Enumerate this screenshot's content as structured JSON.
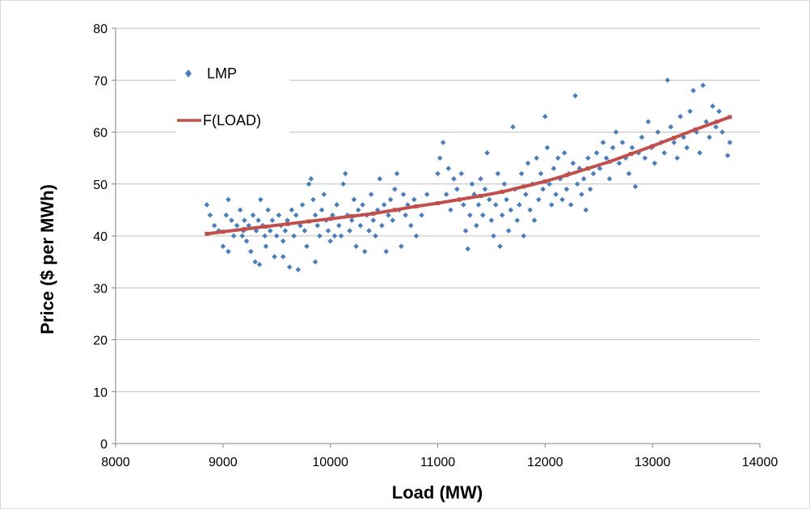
{
  "chart_data": {
    "type": "scatter",
    "title": "",
    "xlabel": "Load (MW)",
    "ylabel": "Price ($ per MWh)",
    "xlim": [
      8000,
      14000
    ],
    "ylim": [
      0,
      80
    ],
    "xticks": [
      8000,
      9000,
      10000,
      11000,
      12000,
      13000,
      14000
    ],
    "yticks": [
      0,
      10,
      20,
      30,
      40,
      50,
      60,
      70,
      80
    ],
    "grid": "horizontal",
    "legend_position": "top-left",
    "series": [
      {
        "name": "LMP",
        "kind": "scatter",
        "marker": "diamond",
        "color": "#4a7ebb",
        "points": [
          [
            8850,
            46
          ],
          [
            8880,
            44
          ],
          [
            8920,
            42
          ],
          [
            8960,
            41
          ],
          [
            9000,
            38
          ],
          [
            9030,
            44
          ],
          [
            9050,
            47
          ],
          [
            9080,
            43
          ],
          [
            9100,
            40
          ],
          [
            9130,
            42
          ],
          [
            9160,
            45
          ],
          [
            9190,
            41
          ],
          [
            9200,
            43
          ],
          [
            9220,
            39
          ],
          [
            9240,
            42
          ],
          [
            9260,
            37
          ],
          [
            9280,
            44
          ],
          [
            9300,
            35
          ],
          [
            9310,
            41
          ],
          [
            9330,
            43
          ],
          [
            9350,
            47
          ],
          [
            9370,
            42
          ],
          [
            9390,
            40
          ],
          [
            9400,
            38
          ],
          [
            9420,
            45
          ],
          [
            9440,
            41
          ],
          [
            9460,
            43
          ],
          [
            9480,
            36
          ],
          [
            9500,
            40
          ],
          [
            9520,
            44
          ],
          [
            9540,
            42
          ],
          [
            9560,
            39
          ],
          [
            9580,
            41
          ],
          [
            9600,
            43
          ],
          [
            9620,
            34
          ],
          [
            9640,
            45
          ],
          [
            9660,
            40
          ],
          [
            9680,
            44
          ],
          [
            9700,
            33.5
          ],
          [
            9720,
            42
          ],
          [
            9740,
            46
          ],
          [
            9760,
            41
          ],
          [
            9780,
            38
          ],
          [
            9800,
            50
          ],
          [
            9820,
            51
          ],
          [
            9840,
            47
          ],
          [
            9860,
            44
          ],
          [
            9880,
            42
          ],
          [
            9900,
            40
          ],
          [
            9920,
            45
          ],
          [
            9940,
            48
          ],
          [
            9960,
            43
          ],
          [
            9980,
            41
          ],
          [
            10000,
            39
          ],
          [
            10020,
            44
          ],
          [
            10040,
            40
          ],
          [
            10060,
            46
          ],
          [
            10080,
            42
          ],
          [
            10100,
            40
          ],
          [
            10120,
            50
          ],
          [
            10140,
            52
          ],
          [
            10160,
            44
          ],
          [
            10180,
            41
          ],
          [
            10200,
            43
          ],
          [
            10220,
            47
          ],
          [
            10240,
            38
          ],
          [
            10260,
            45
          ],
          [
            10280,
            42
          ],
          [
            10300,
            46
          ],
          [
            10320,
            37
          ],
          [
            10340,
            44
          ],
          [
            10360,
            41
          ],
          [
            10380,
            48
          ],
          [
            10400,
            43
          ],
          [
            10420,
            40
          ],
          [
            10440,
            45
          ],
          [
            10460,
            51
          ],
          [
            10480,
            42
          ],
          [
            10500,
            46
          ],
          [
            10520,
            37
          ],
          [
            10540,
            44
          ],
          [
            10560,
            47
          ],
          [
            10580,
            43
          ],
          [
            10600,
            49
          ],
          [
            10620,
            52
          ],
          [
            10640,
            45
          ],
          [
            10660,
            38
          ],
          [
            10680,
            48
          ],
          [
            10700,
            44
          ],
          [
            10720,
            46
          ],
          [
            10750,
            42
          ],
          [
            10780,
            47
          ],
          [
            10800,
            40
          ],
          [
            10850,
            44
          ],
          [
            10900,
            48
          ],
          [
            9050,
            37
          ],
          [
            9180,
            40
          ],
          [
            9340,
            34.5
          ],
          [
            9560,
            36
          ],
          [
            9860,
            35
          ],
          [
            11000,
            52
          ],
          [
            11020,
            55
          ],
          [
            11050,
            58
          ],
          [
            11080,
            48
          ],
          [
            11100,
            53
          ],
          [
            11120,
            45
          ],
          [
            11150,
            51
          ],
          [
            11180,
            49
          ],
          [
            11200,
            47
          ],
          [
            11220,
            52
          ],
          [
            11240,
            46
          ],
          [
            11260,
            41
          ],
          [
            11280,
            37.5
          ],
          [
            11300,
            44
          ],
          [
            11320,
            50
          ],
          [
            11340,
            48
          ],
          [
            11360,
            42
          ],
          [
            11380,
            46
          ],
          [
            11400,
            51
          ],
          [
            11420,
            44
          ],
          [
            11440,
            49
          ],
          [
            11460,
            56
          ],
          [
            11480,
            47
          ],
          [
            11500,
            43
          ],
          [
            11520,
            40
          ],
          [
            11540,
            46
          ],
          [
            11560,
            52
          ],
          [
            11580,
            38
          ],
          [
            11600,
            44
          ],
          [
            11620,
            50
          ],
          [
            11640,
            47
          ],
          [
            11660,
            41
          ],
          [
            11680,
            45
          ],
          [
            11700,
            61
          ],
          [
            11720,
            49
          ],
          [
            11740,
            43
          ],
          [
            11760,
            46
          ],
          [
            11780,
            52
          ],
          [
            11800,
            40
          ],
          [
            11820,
            48
          ],
          [
            11840,
            54
          ],
          [
            11860,
            45
          ],
          [
            11880,
            50
          ],
          [
            11900,
            43
          ],
          [
            11920,
            55
          ],
          [
            11940,
            47
          ],
          [
            11960,
            52
          ],
          [
            11980,
            49
          ],
          [
            12000,
            63
          ],
          [
            12020,
            57
          ],
          [
            12040,
            50
          ],
          [
            12060,
            46
          ],
          [
            12080,
            53
          ],
          [
            12100,
            48
          ],
          [
            12120,
            55
          ],
          [
            12140,
            51
          ],
          [
            12160,
            47
          ],
          [
            12180,
            56
          ],
          [
            12200,
            49
          ],
          [
            12220,
            52
          ],
          [
            12240,
            46
          ],
          [
            12260,
            54
          ],
          [
            12280,
            67
          ],
          [
            12300,
            50
          ],
          [
            12320,
            53
          ],
          [
            12340,
            48
          ],
          [
            12360,
            51
          ],
          [
            12380,
            45
          ],
          [
            12400,
            55
          ],
          [
            12420,
            49
          ],
          [
            12450,
            52
          ],
          [
            12480,
            56
          ],
          [
            12510,
            53
          ],
          [
            12540,
            58
          ],
          [
            12570,
            55
          ],
          [
            12600,
            51
          ],
          [
            12630,
            57
          ],
          [
            12660,
            60
          ],
          [
            12690,
            54
          ],
          [
            12720,
            58
          ],
          [
            12750,
            55
          ],
          [
            12780,
            52
          ],
          [
            12810,
            57
          ],
          [
            12840,
            49.5
          ],
          [
            12870,
            56
          ],
          [
            12900,
            59
          ],
          [
            12930,
            55
          ],
          [
            12960,
            62
          ],
          [
            12990,
            57
          ],
          [
            13020,
            54
          ],
          [
            13050,
            60
          ],
          [
            13080,
            58
          ],
          [
            13110,
            56
          ],
          [
            13140,
            70
          ],
          [
            13170,
            61
          ],
          [
            13200,
            58
          ],
          [
            13230,
            55
          ],
          [
            13260,
            63
          ],
          [
            13290,
            59
          ],
          [
            13320,
            57
          ],
          [
            13350,
            64
          ],
          [
            13380,
            68
          ],
          [
            13410,
            60
          ],
          [
            13440,
            56
          ],
          [
            13470,
            69
          ],
          [
            13500,
            62
          ],
          [
            13530,
            59
          ],
          [
            13560,
            65
          ],
          [
            13590,
            61
          ],
          [
            13620,
            64
          ],
          [
            13650,
            60
          ],
          [
            13700,
            55.5
          ],
          [
            13720,
            58
          ]
        ]
      },
      {
        "name": "F(LOAD)",
        "kind": "line",
        "color": "#c0504d",
        "points": [
          [
            8850,
            40.4
          ],
          [
            9000,
            40.8
          ],
          [
            9200,
            41.3
          ],
          [
            9400,
            41.8
          ],
          [
            9600,
            42.3
          ],
          [
            9800,
            42.8
          ],
          [
            10000,
            43.3
          ],
          [
            10200,
            43.8
          ],
          [
            10400,
            44.3
          ],
          [
            10600,
            45.0
          ],
          [
            10800,
            45.7
          ],
          [
            11000,
            46.3
          ],
          [
            11200,
            47.0
          ],
          [
            11400,
            47.7
          ],
          [
            11600,
            48.5
          ],
          [
            11800,
            49.5
          ],
          [
            12000,
            50.5
          ],
          [
            12200,
            51.7
          ],
          [
            12400,
            53.0
          ],
          [
            12600,
            54.3
          ],
          [
            12800,
            55.8
          ],
          [
            13000,
            57.3
          ],
          [
            13200,
            58.9
          ],
          [
            13400,
            60.5
          ],
          [
            13600,
            62.0
          ],
          [
            13720,
            62.9
          ]
        ]
      }
    ]
  }
}
